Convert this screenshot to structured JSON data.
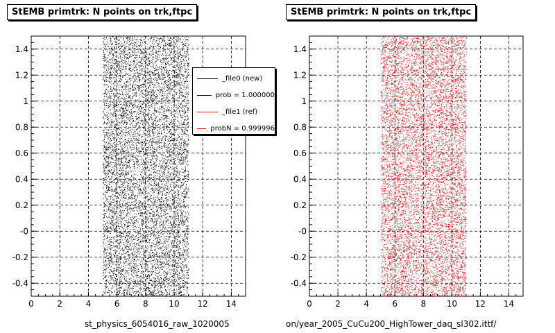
{
  "chart_data": [
    {
      "type": "scatter",
      "title": "StEMB primtrk: N points on trk,ftpc",
      "xlabel": "st_physics_6054016_raw_1020005",
      "ylabel": "",
      "xlim": [
        0,
        15
      ],
      "ylim": [
        -0.5,
        1.5
      ],
      "x_ticks": [
        "0",
        "2",
        "4",
        "6",
        "8",
        "10",
        "12",
        "14"
      ],
      "y_ticks": [
        "-0.4",
        "-0.2",
        "-0",
        "0.2",
        "0.4",
        "0.6",
        "0.8",
        "1",
        "1.2",
        "1.4"
      ],
      "grid": true,
      "marker_color": "#000000",
      "point_density": "uniform",
      "x_range_populated": [
        5,
        11
      ],
      "y_range_populated": [
        -0.5,
        1.5
      ],
      "series": [
        {
          "name": "_file0 (new)",
          "color": "#000000"
        },
        {
          "name": "prob = 1.000000",
          "color": "#000000"
        },
        {
          "name": "_file1 (ref)",
          "color": "#ff0000"
        },
        {
          "name": "probN = 0.999996",
          "color": "#ff0000"
        }
      ],
      "legend_position": "top-right"
    },
    {
      "type": "scatter",
      "title": "StEMB primtrk: N points on trk,ftpc",
      "xlabel": "on/year_2005_CuCu200_HighTower_daq_sl302.ittf/",
      "ylabel": "",
      "xlim": [
        0,
        15
      ],
      "ylim": [
        -0.5,
        1.5
      ],
      "x_ticks": [
        "0",
        "2",
        "4",
        "6",
        "8",
        "10",
        "12",
        "14"
      ],
      "y_ticks": [
        "-0.4",
        "-0.2",
        "-0",
        "0.2",
        "0.4",
        "0.6",
        "0.8",
        "1",
        "1.2",
        "1.4"
      ],
      "grid": true,
      "marker_color": "#ff0000",
      "point_density": "uniform",
      "x_range_populated": [
        5,
        11
      ],
      "y_range_populated": [
        -0.5,
        1.5
      ]
    }
  ]
}
